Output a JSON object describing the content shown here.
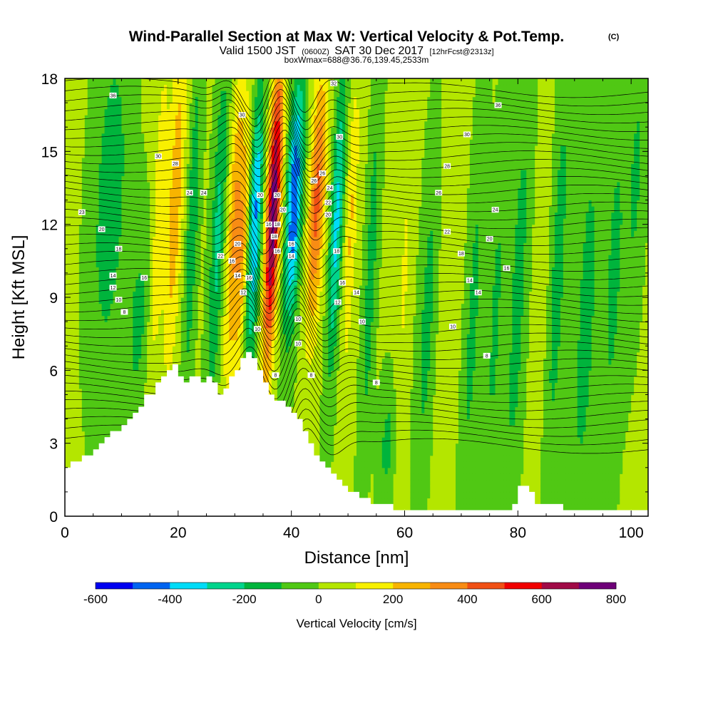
{
  "chart_data": {
    "type": "heatmap",
    "title": "Wind-Parallel Section at Max W: Vertical Velocity & Pot.Temp.",
    "title_mark": "(C)",
    "subtitle_parts": [
      "Valid 1500 JST",
      "(0600Z)",
      "SAT 30 Dec 2017",
      "[12hrFcst@2313z]"
    ],
    "subtitle2": "boxWmax=688@36.76,139.45,2533m",
    "xlabel": "Distance [nm]",
    "ylabel": "Height [Kft MSL]",
    "xlim": [
      0,
      103
    ],
    "ylim": [
      0,
      18
    ],
    "x_ticks": [
      0,
      20,
      40,
      60,
      80,
      100
    ],
    "y_ticks": [
      0,
      3,
      6,
      9,
      12,
      15,
      18
    ],
    "colorbar": {
      "title": "Vertical Velocity [cm/s]",
      "levels": [
        -600,
        -500,
        -400,
        -300,
        -200,
        -100,
        0,
        100,
        200,
        300,
        400,
        500,
        600,
        700,
        800
      ],
      "labels": [
        "-600",
        "-400",
        "-200",
        "0",
        "200",
        "400",
        "600",
        "800"
      ],
      "colors": [
        "#0000f0",
        "#0064f0",
        "#00dcf8",
        "#00d48c",
        "#00b43c",
        "#50c814",
        "#b4e600",
        "#f8f000",
        "#f8b400",
        "#f88c14",
        "#f05014",
        "#f00000",
        "#a00a46",
        "#6e0078"
      ]
    },
    "terrain": [
      [
        0,
        2.0
      ],
      [
        2,
        2.3
      ],
      [
        4,
        2.6
      ],
      [
        6,
        3.0
      ],
      [
        8,
        3.4
      ],
      [
        10,
        3.8
      ],
      [
        11,
        4.0
      ],
      [
        12,
        4.3
      ],
      [
        13,
        4.6
      ],
      [
        14,
        4.9
      ],
      [
        15,
        5.1
      ],
      [
        16,
        5.4
      ],
      [
        17,
        5.7
      ],
      [
        18,
        5.9
      ],
      [
        19,
        6.2
      ],
      [
        20,
        5.7
      ],
      [
        21,
        5.5
      ],
      [
        22,
        5.8
      ],
      [
        23,
        5.7
      ],
      [
        24,
        5.5
      ],
      [
        25,
        5.8
      ],
      [
        26,
        5.6
      ],
      [
        27,
        5.1
      ],
      [
        28,
        5.3
      ],
      [
        29,
        5.8
      ],
      [
        30,
        6.1
      ],
      [
        31,
        6.4
      ],
      [
        32,
        6.7
      ],
      [
        33,
        6.4
      ],
      [
        34,
        5.9
      ],
      [
        35,
        5.4
      ],
      [
        36,
        4.9
      ],
      [
        37,
        4.8
      ],
      [
        38,
        4.7
      ],
      [
        39,
        4.5
      ],
      [
        40,
        4.3
      ],
      [
        41,
        4.0
      ],
      [
        42,
        3.5
      ],
      [
        43,
        3.0
      ],
      [
        44,
        2.6
      ],
      [
        45,
        2.3
      ],
      [
        46,
        2.1
      ],
      [
        47,
        1.8
      ],
      [
        48,
        1.5
      ],
      [
        49,
        1.3
      ],
      [
        50,
        1.1
      ],
      [
        51,
        0.9
      ],
      [
        52,
        0.8
      ],
      [
        53,
        0.7
      ],
      [
        54,
        0.6
      ],
      [
        55,
        0.6
      ],
      [
        56,
        0.5
      ],
      [
        57,
        0.4
      ],
      [
        58,
        0.35
      ],
      [
        60,
        0.3
      ],
      [
        62,
        0.3
      ],
      [
        64,
        0.3
      ],
      [
        66,
        0.3
      ],
      [
        68,
        0.3
      ],
      [
        70,
        0.3
      ],
      [
        72,
        0.3
      ],
      [
        74,
        0.3
      ],
      [
        76,
        0.3
      ],
      [
        78,
        0.3
      ],
      [
        79,
        0.6
      ],
      [
        80,
        1.2
      ],
      [
        81,
        1.3
      ],
      [
        82,
        1.0
      ],
      [
        83,
        0.6
      ],
      [
        84,
        0.5
      ],
      [
        85,
        0.45
      ],
      [
        86,
        0.4
      ],
      [
        88,
        0.35
      ],
      [
        90,
        0.35
      ],
      [
        92,
        0.35
      ],
      [
        94,
        0.35
      ],
      [
        96,
        0.35
      ],
      [
        98,
        0.35
      ],
      [
        100,
        0.35
      ],
      [
        103,
        0.35
      ]
    ],
    "velocity_features": [
      {
        "x": 8.0,
        "z": 13.0,
        "w": -180,
        "sx": 3.0,
        "sz": 7.0
      },
      {
        "x": 13.0,
        "z": 8.0,
        "w": -140,
        "sx": 2.0,
        "sz": 4.0
      },
      {
        "x": 16.5,
        "z": 12.0,
        "w": 150,
        "sx": 1.2,
        "sz": 8.0
      },
      {
        "x": 19.5,
        "z": 13.0,
        "w": 260,
        "sx": 1.4,
        "sz": 7.0
      },
      {
        "x": 22.5,
        "z": 12.0,
        "w": -200,
        "sx": 1.0,
        "sz": 7.0
      },
      {
        "x": 27.0,
        "z": 11.5,
        "w": -240,
        "sx": 1.2,
        "sz": 7.0
      },
      {
        "x": 30.0,
        "z": 12.0,
        "w": 300,
        "sx": 1.3,
        "sz": 6.5
      },
      {
        "x": 31.5,
        "z": 11.0,
        "w": 250,
        "sx": 1.0,
        "sz": 5.0
      },
      {
        "x": 33.5,
        "z": 12.0,
        "w": -430,
        "sx": 1.2,
        "sz": 5.5
      },
      {
        "x": 36.8,
        "z": 12.5,
        "w": 760,
        "sx": 1.2,
        "sz": 6.0
      },
      {
        "x": 40.5,
        "z": 13.0,
        "w": -520,
        "sx": 1.3,
        "sz": 5.0
      },
      {
        "x": 44.5,
        "z": 13.0,
        "w": 420,
        "sx": 1.4,
        "sz": 5.5
      },
      {
        "x": 48.0,
        "z": 12.0,
        "w": -340,
        "sx": 1.1,
        "sz": 6.0
      },
      {
        "x": 50.5,
        "z": 12.0,
        "w": 200,
        "sx": 1.0,
        "sz": 6.0
      },
      {
        "x": 54.0,
        "z": 10.0,
        "w": -170,
        "sx": 1.0,
        "sz": 8.0
      },
      {
        "x": 57.0,
        "z": 3.0,
        "w": -150,
        "sx": 1.5,
        "sz": 2.5
      },
      {
        "x": 60.0,
        "z": 10.0,
        "w": 100,
        "sx": 1.2,
        "sz": 8.0
      },
      {
        "x": 64.0,
        "z": 8.0,
        "w": -150,
        "sx": 1.5,
        "sz": 7.0
      },
      {
        "x": 68.0,
        "z": 10.0,
        "w": 60,
        "sx": 2.0,
        "sz": 9.0
      },
      {
        "x": 72.0,
        "z": 8.0,
        "w": -140,
        "sx": 1.4,
        "sz": 8.0
      },
      {
        "x": 76.0,
        "z": 8.0,
        "w": -130,
        "sx": 1.4,
        "sz": 8.0
      },
      {
        "x": 80.0,
        "z": 9.0,
        "w": -160,
        "sx": 1.5,
        "sz": 9.0
      },
      {
        "x": 84.0,
        "z": 8.0,
        "w": 60,
        "sx": 1.4,
        "sz": 8.0
      },
      {
        "x": 87.0,
        "z": 10.0,
        "w": -160,
        "sx": 1.5,
        "sz": 9.0
      },
      {
        "x": 92.0,
        "z": 8.0,
        "w": -150,
        "sx": 2.0,
        "sz": 9.0
      },
      {
        "x": 97.0,
        "z": 10.0,
        "w": -130,
        "sx": 2.0,
        "sz": 9.0
      },
      {
        "x": 101.0,
        "z": 14.0,
        "w": -120,
        "sx": 1.5,
        "sz": 6.0
      }
    ],
    "contour_labels": [
      {
        "x": 8.5,
        "z": 17.3,
        "text": "36"
      },
      {
        "x": 16.5,
        "z": 14.8,
        "text": "30"
      },
      {
        "x": 19.5,
        "z": 14.5,
        "text": "28"
      },
      {
        "x": 22,
        "z": 13.3,
        "text": "24"
      },
      {
        "x": 24.5,
        "z": 13.3,
        "text": "24"
      },
      {
        "x": 3.0,
        "z": 12.5,
        "text": "23"
      },
      {
        "x": 6.5,
        "z": 11.8,
        "text": "20"
      },
      {
        "x": 9.5,
        "z": 11.0,
        "text": "18"
      },
      {
        "x": 8.5,
        "z": 9.9,
        "text": "14"
      },
      {
        "x": 8.5,
        "z": 9.4,
        "text": "12"
      },
      {
        "x": 9.5,
        "z": 8.9,
        "text": "10"
      },
      {
        "x": 10.5,
        "z": 8.4,
        "text": "8"
      },
      {
        "x": 14.0,
        "z": 9.8,
        "text": "16"
      },
      {
        "x": 30.5,
        "z": 11.2,
        "text": "20"
      },
      {
        "x": 27.5,
        "z": 10.7,
        "text": "22"
      },
      {
        "x": 29.5,
        "z": 10.5,
        "text": "16"
      },
      {
        "x": 30.5,
        "z": 9.9,
        "text": "14"
      },
      {
        "x": 32.5,
        "z": 9.8,
        "text": "16"
      },
      {
        "x": 31.5,
        "z": 9.2,
        "text": "12"
      },
      {
        "x": 31.3,
        "z": 16.5,
        "text": "30"
      },
      {
        "x": 34.5,
        "z": 13.2,
        "text": "20"
      },
      {
        "x": 36.0,
        "z": 12.0,
        "text": "16"
      },
      {
        "x": 37.5,
        "z": 13.2,
        "text": "20"
      },
      {
        "x": 38.5,
        "z": 12.6,
        "text": "20"
      },
      {
        "x": 37.5,
        "z": 12.0,
        "text": "18"
      },
      {
        "x": 37.0,
        "z": 11.5,
        "text": "18"
      },
      {
        "x": 37.5,
        "z": 10.9,
        "text": "16"
      },
      {
        "x": 40.0,
        "z": 11.2,
        "text": "16"
      },
      {
        "x": 40.0,
        "z": 10.7,
        "text": "14"
      },
      {
        "x": 34.0,
        "z": 7.7,
        "text": "10"
      },
      {
        "x": 37.2,
        "z": 5.8,
        "text": "8"
      },
      {
        "x": 41.2,
        "z": 8.1,
        "text": "10"
      },
      {
        "x": 41.2,
        "z": 7.1,
        "text": "10"
      },
      {
        "x": 43.5,
        "z": 5.8,
        "text": "8"
      },
      {
        "x": 44.0,
        "z": 13.8,
        "text": "26"
      },
      {
        "x": 45.5,
        "z": 14.1,
        "text": "26"
      },
      {
        "x": 46.8,
        "z": 13.5,
        "text": "24"
      },
      {
        "x": 46.5,
        "z": 12.9,
        "text": "22"
      },
      {
        "x": 46.5,
        "z": 12.4,
        "text": "20"
      },
      {
        "x": 48.0,
        "z": 10.9,
        "text": "18"
      },
      {
        "x": 49.0,
        "z": 9.6,
        "text": "16"
      },
      {
        "x": 48.2,
        "z": 8.8,
        "text": "12"
      },
      {
        "x": 51.5,
        "z": 9.2,
        "text": "14"
      },
      {
        "x": 52.5,
        "z": 8.0,
        "text": "10"
      },
      {
        "x": 55.0,
        "z": 5.5,
        "text": "8"
      },
      {
        "x": 47.5,
        "z": 17.8,
        "text": "32"
      },
      {
        "x": 48.5,
        "z": 15.6,
        "text": "30"
      },
      {
        "x": 67.5,
        "z": 14.4,
        "text": "28"
      },
      {
        "x": 66.0,
        "z": 13.3,
        "text": "26"
      },
      {
        "x": 76.5,
        "z": 16.9,
        "text": "36"
      },
      {
        "x": 71.0,
        "z": 15.7,
        "text": "30"
      },
      {
        "x": 76.0,
        "z": 12.6,
        "text": "24"
      },
      {
        "x": 67.5,
        "z": 11.7,
        "text": "22"
      },
      {
        "x": 75.0,
        "z": 11.4,
        "text": "20"
      },
      {
        "x": 70.0,
        "z": 10.8,
        "text": "18"
      },
      {
        "x": 78.0,
        "z": 10.2,
        "text": "16"
      },
      {
        "x": 71.5,
        "z": 9.7,
        "text": "14"
      },
      {
        "x": 73.0,
        "z": 9.2,
        "text": "14"
      },
      {
        "x": 68.5,
        "z": 7.8,
        "text": "10"
      },
      {
        "x": 74.5,
        "z": 6.6,
        "text": "8"
      }
    ]
  }
}
